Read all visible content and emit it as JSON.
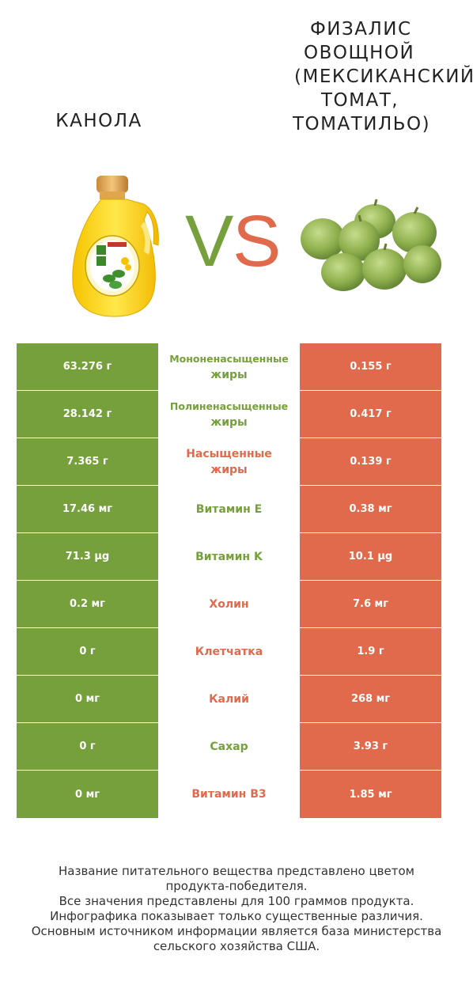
{
  "header": {
    "left_title": "КАНОЛА",
    "right_title_lines": [
      "ФИЗАЛИС",
      "ОВОЩНОЙ",
      "(МЕКСИКАНСКИЙ",
      "ТОМАТ,",
      "ТОМАТИЛЬО)"
    ],
    "vs_v": "V",
    "vs_s": "S"
  },
  "colors": {
    "winner_left": "#76a03c",
    "winner_right": "#e06a4b"
  },
  "rows": [
    {
      "left": "63.276 г",
      "name_lines": [
        "Мононенасыщенные",
        "жиры"
      ],
      "right": "0.155 г",
      "winner": "left"
    },
    {
      "left": "28.142 г",
      "name_lines": [
        "Полиненасыщенные",
        "жиры"
      ],
      "right": "0.417 г",
      "winner": "left"
    },
    {
      "left": "7.365 г",
      "name_lines": [
        "Насыщенные",
        "жиры"
      ],
      "right": "0.139 г",
      "winner": "right"
    },
    {
      "left": "17.46 мг",
      "name_lines": [
        "Витамин E"
      ],
      "right": "0.38 мг",
      "winner": "left"
    },
    {
      "left": "71.3 µg",
      "name_lines": [
        "Витамин K"
      ],
      "right": "10.1 µg",
      "winner": "left"
    },
    {
      "left": "0.2 мг",
      "name_lines": [
        "Холин"
      ],
      "right": "7.6 мг",
      "winner": "right"
    },
    {
      "left": "0 г",
      "name_lines": [
        "Клетчатка"
      ],
      "right": "1.9 г",
      "winner": "right"
    },
    {
      "left": "0 мг",
      "name_lines": [
        "Калий"
      ],
      "right": "268 мг",
      "winner": "right"
    },
    {
      "left": "0 г",
      "name_lines": [
        "Сахар"
      ],
      "right": "3.93 г",
      "winner": "left"
    },
    {
      "left": "0 мг",
      "name_lines": [
        "Витамин B3"
      ],
      "right": "1.85 мг",
      "winner": "right"
    }
  ],
  "footer": {
    "lines": [
      "Название питательного вещества представлено цветом",
      "продукта-победителя.",
      "Все значения представлены для 100 граммов продукта.",
      "Инфографика показывает только существенные различия.",
      "Основным источником информации является база министерства",
      "сельского хозяйства США."
    ]
  }
}
